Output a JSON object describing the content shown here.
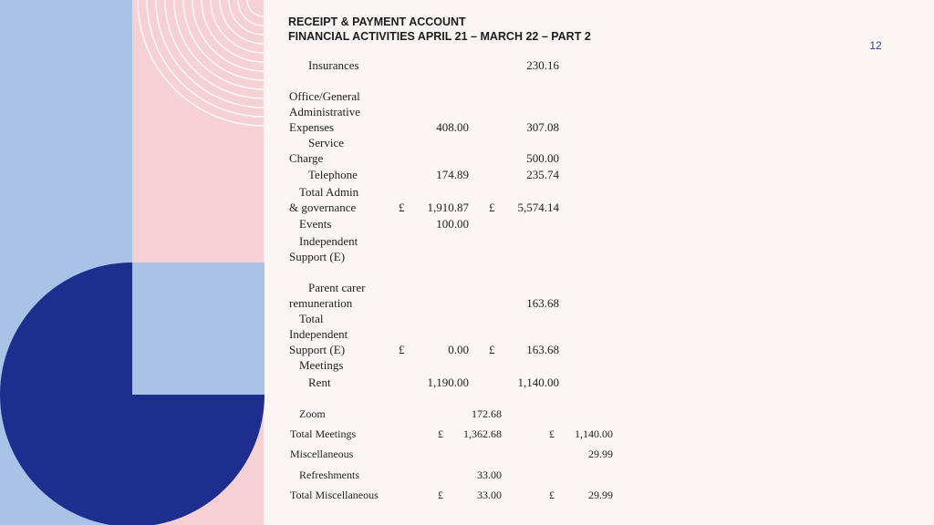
{
  "header": {
    "title_line1": "RECEIPT & PAYMENT ACCOUNT",
    "title_line2": "FINANCIAL ACTIVITIES APRIL 21 – MARCH 22 – PART 2",
    "page_number": "12"
  },
  "colors": {
    "left_strip": "#a9c2e6",
    "pink_panel": "#f6d1d3",
    "pie_dark": "#1e2e8e",
    "pie_light": "#a9c2e6",
    "page_number": "#2b3db0"
  },
  "currency_symbol": "£",
  "rows": {
    "insurances": {
      "label": "Insurances",
      "col2": "230.16"
    },
    "office_general": {
      "label_lines": [
        "Office/General",
        "Administrative",
        "Expenses"
      ],
      "col1": "408.00",
      "col2": "307.08"
    },
    "service_charge": {
      "label_lines": [
        "Service",
        "Charge"
      ],
      "col2": "500.00"
    },
    "telephone": {
      "label": "Telephone",
      "col1": "174.89",
      "col2": "235.74"
    },
    "total_admin": {
      "label_lines": [
        "Total Admin",
        "& governance"
      ],
      "col1": "1,910.87",
      "col2": "5,574.14"
    },
    "events": {
      "label": "Events",
      "col1": "100.00"
    },
    "independent_support": {
      "label_lines": [
        "Independent",
        "Support (E)"
      ]
    },
    "parent_carer": {
      "label_lines": [
        "Parent carer",
        "remuneration"
      ],
      "col2": "163.68"
    },
    "total_independent": {
      "label_lines": [
        "Total",
        "Independent",
        "Support (E)"
      ],
      "col1": "0.00",
      "col2": "163.68"
    },
    "meetings": {
      "label": "Meetings"
    },
    "rent": {
      "label": "Rent",
      "col1": "1,190.00",
      "col2": "1,140.00"
    },
    "zoom": {
      "label": "Zoom",
      "col1": "172.68"
    },
    "total_meetings": {
      "label": "Total Meetings",
      "col1": "1,362.68",
      "col2": "1,140.00"
    },
    "miscellaneous": {
      "label": "Miscellaneous",
      "col2": "29.99"
    },
    "refreshments": {
      "label": "Refreshments",
      "col1": "33.00"
    },
    "total_misc": {
      "label": "Total Miscellaneous",
      "col1": "33.00",
      "col2": "29.99"
    }
  }
}
